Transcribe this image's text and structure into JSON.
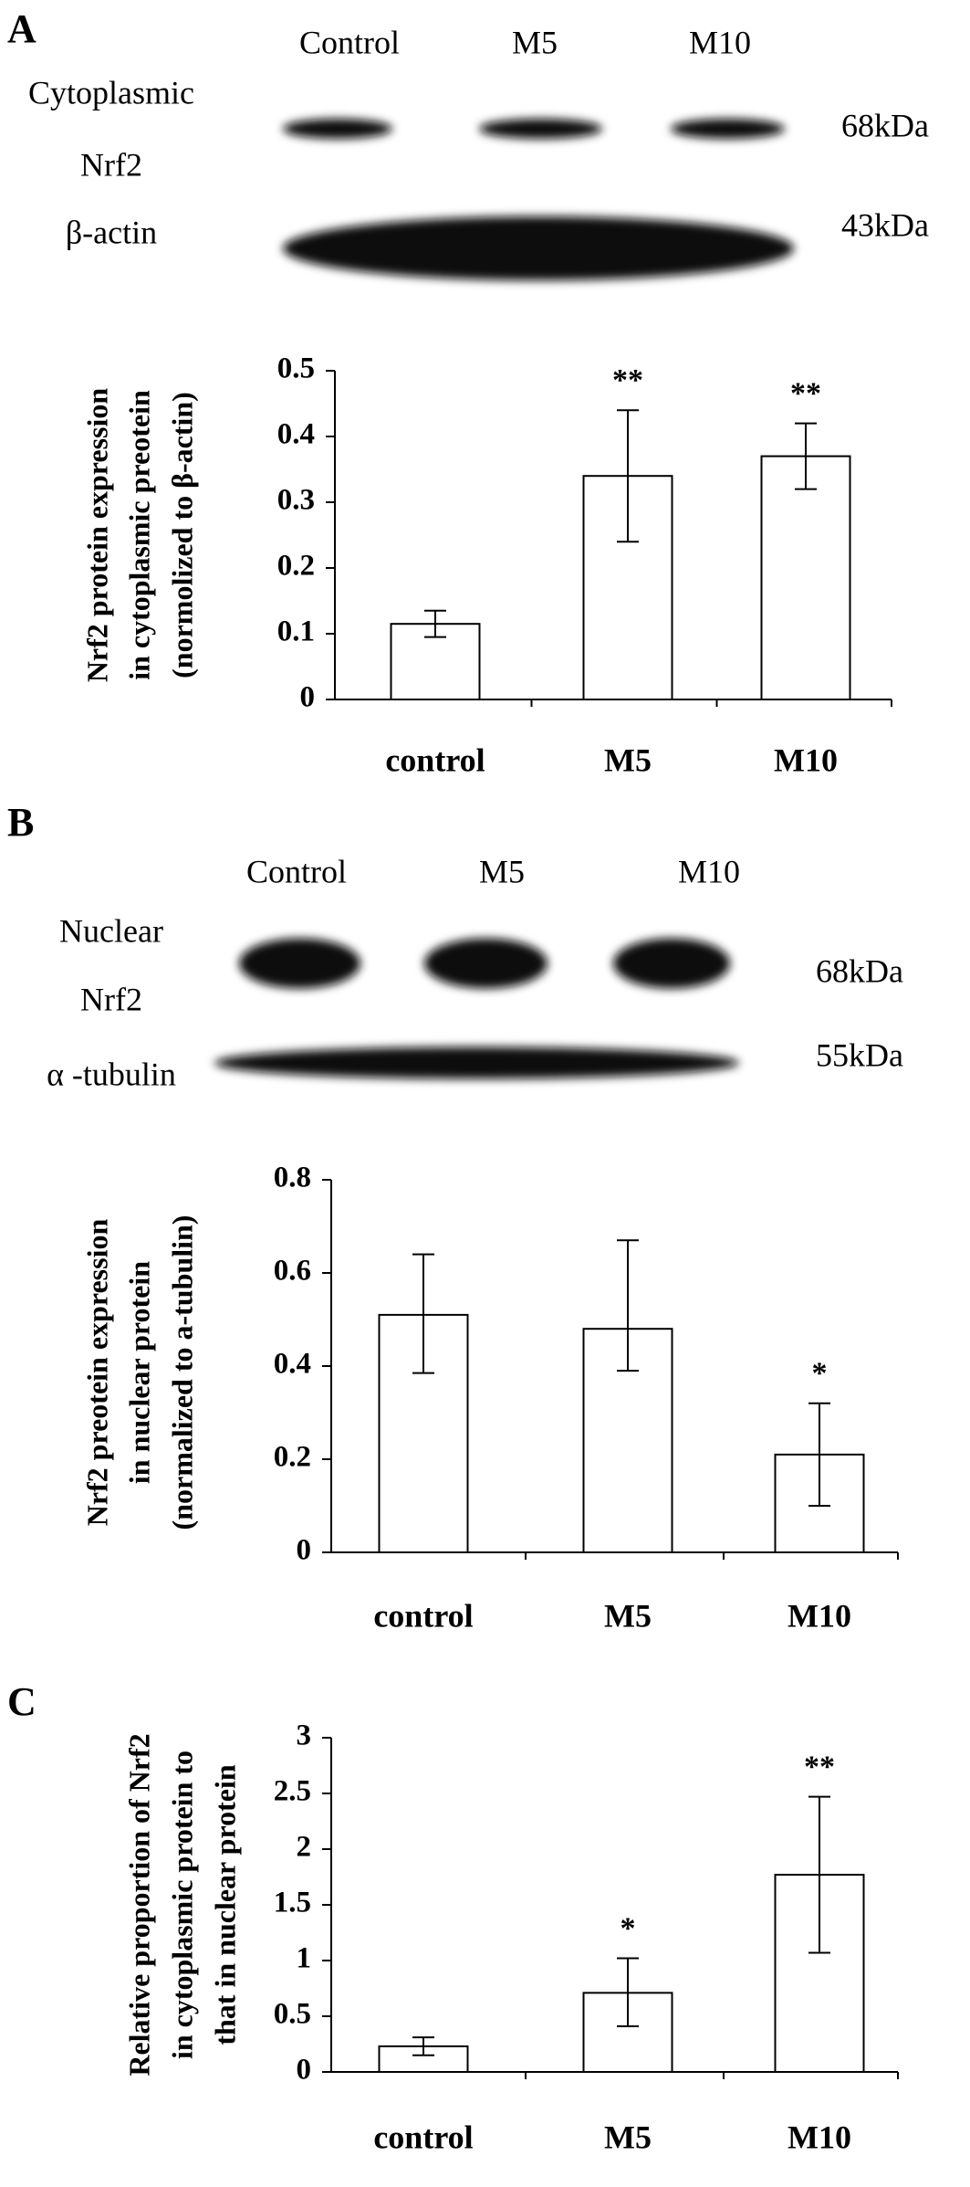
{
  "chart_data": [
    {
      "type": "bar",
      "panel": "A",
      "blot": {
        "lanes": [
          "Control",
          "M5",
          "M10"
        ],
        "rows": [
          {
            "label": [
              "Cytoplasmic",
              "Nrf2"
            ],
            "size": "68kDa"
          },
          {
            "label": [
              "β-actin"
            ],
            "size": "43kDa"
          }
        ]
      },
      "y_label": [
        "Nrf2 protein expression",
        "in cytoplasmic preotein",
        "(normolized to  β-actin)"
      ],
      "categories": [
        "control",
        "M5",
        "M10"
      ],
      "values": [
        0.115,
        0.34,
        0.37
      ],
      "error_minus": [
        0.02,
        0.1,
        0.05
      ],
      "error_plus": [
        0.02,
        0.1,
        0.05
      ],
      "annotations": [
        null,
        "**",
        "**"
      ],
      "color": "#ffffff",
      "ylim": [
        0,
        0.5
      ],
      "yticks": [
        0,
        0.1,
        0.2,
        0.3,
        0.4,
        0.5
      ]
    },
    {
      "type": "bar",
      "panel": "B",
      "blot": {
        "lanes": [
          "Control",
          "M5",
          "M10"
        ],
        "rows": [
          {
            "label": [
              "Nuclear",
              "Nrf2"
            ],
            "size": "68kDa"
          },
          {
            "label": [
              "α -tubulin"
            ],
            "size": "55kDa"
          }
        ]
      },
      "y_label": [
        "Nrf2 preotein expression",
        "in nuclear protein",
        "(normalized to  a-tubulin)"
      ],
      "categories": [
        "control",
        "M5",
        "M10"
      ],
      "values": [
        0.51,
        0.48,
        0.21
      ],
      "error_minus": [
        0.125,
        0.09,
        0.11
      ],
      "error_plus": [
        0.13,
        0.19,
        0.11
      ],
      "annotations": [
        null,
        null,
        "*"
      ],
      "color": "#ffffff",
      "ylim": [
        0,
        0.8
      ],
      "yticks": [
        0,
        0.2,
        0.4,
        0.6,
        0.8
      ]
    },
    {
      "type": "bar",
      "panel": "C",
      "y_label": [
        "Relative proportion of Nrf2",
        "in cytoplasmic protein to",
        "that in nuclear protein"
      ],
      "categories": [
        "control",
        "M5",
        "M10"
      ],
      "values": [
        0.23,
        0.71,
        1.77
      ],
      "error_minus": [
        0.08,
        0.3,
        0.7
      ],
      "error_plus": [
        0.08,
        0.31,
        0.7
      ],
      "annotations": [
        null,
        "*",
        "**"
      ],
      "color": "#ffffff",
      "ylim": [
        0,
        3
      ],
      "yticks": [
        0,
        0.5,
        1,
        1.5,
        2,
        2.5,
        3
      ]
    }
  ]
}
